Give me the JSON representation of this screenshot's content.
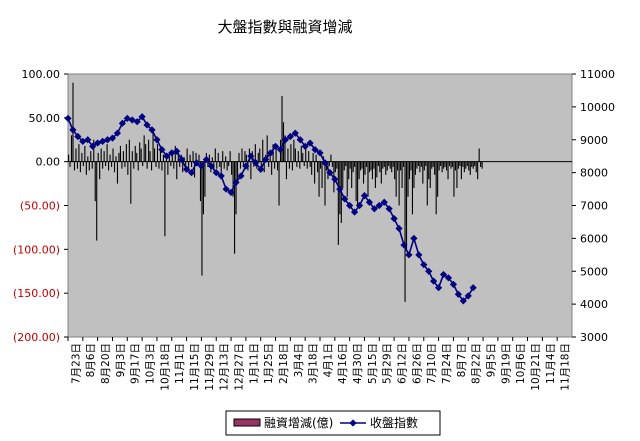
{
  "chart_data": {
    "type": "bar+line",
    "title": "大盤指數與融資增減",
    "xlabel": "",
    "ylabel_left": "",
    "ylabel_right": "",
    "left_axis": {
      "ylim": [
        -200,
        100
      ],
      "ticks": [
        100,
        50,
        0,
        -50,
        -100,
        -150,
        -200
      ],
      "tick_labels": [
        "100.00",
        "50.00",
        "0.00",
        "(50.00)",
        "(100.00)",
        "(150.00)",
        "(200.00)"
      ]
    },
    "right_axis": {
      "ylim": [
        3000,
        11000
      ],
      "ticks": [
        11000,
        10000,
        9000,
        8000,
        7000,
        6000,
        5000,
        4000,
        3000
      ],
      "tick_labels": [
        "11000",
        "10000",
        "9000",
        "8000",
        "7000",
        "6000",
        "5000",
        "4000",
        "3000"
      ]
    },
    "x_tick_labels": [
      "7月23日",
      "8月6日",
      "8月20日",
      "9月3日",
      "9月17日",
      "10月3日",
      "10月18日",
      "11月1日",
      "11月15日",
      "11月29日",
      "12月13日",
      "12月27日",
      "1月11日",
      "1月25日",
      "2月18日",
      "3月4日",
      "3月18日",
      "4月1日",
      "4月16日",
      "4月30日",
      "5月15日",
      "5月29日",
      "6月12日",
      "6月26日",
      "7月10日",
      "7月24日",
      "8月7日",
      "8月22日",
      "9月5日",
      "9月19日",
      "10月6日",
      "10月21日",
      "11月4日",
      "11月18日"
    ],
    "gridlines": false,
    "legend_position": "bottom-center",
    "series": [
      {
        "name": "融資增減(億)",
        "type": "bar",
        "axis": "left",
        "color": "#000000",
        "legend_color": "#993366",
        "points_per_tick": 10,
        "values": [
          8,
          -6,
          30,
          90,
          -10,
          15,
          -8,
          20,
          -12,
          10,
          -5,
          18,
          -15,
          6,
          -10,
          12,
          -8,
          25,
          -45,
          -90,
          10,
          -20,
          15,
          -8,
          12,
          -5,
          20,
          -10,
          8,
          -6,
          15,
          -12,
          6,
          -25,
          10,
          18,
          -8,
          12,
          -6,
          20,
          -15,
          25,
          -48,
          12,
          -8,
          18,
          10,
          -10,
          22,
          15,
          -5,
          30,
          20,
          -8,
          25,
          12,
          -10,
          35,
          15,
          -6,
          20,
          -8,
          12,
          -10,
          8,
          -85,
          10,
          -15,
          6,
          -5,
          12,
          -8,
          18,
          -20,
          10,
          -6,
          8,
          -12,
          5,
          -8,
          15,
          -10,
          8,
          -6,
          12,
          -18,
          10,
          -5,
          8,
          -45,
          -130,
          -60,
          -40,
          10,
          -6,
          8,
          -12,
          5,
          -10,
          15,
          -8,
          10,
          -6,
          -20,
          12,
          -8,
          6,
          -10,
          -5,
          12,
          -15,
          -40,
          -105,
          -60,
          -25,
          10,
          -8,
          15,
          -6,
          12,
          8,
          -10,
          15,
          -20,
          12,
          -6,
          20,
          -8,
          10,
          15,
          -10,
          25,
          -12,
          8,
          30,
          -6,
          12,
          -15,
          20,
          -8,
          15,
          -10,
          -50,
          25,
          75,
          45,
          30,
          -20,
          15,
          -8,
          20,
          -10,
          25,
          15,
          -6,
          12,
          -8,
          18,
          10,
          -5,
          20,
          -8,
          12,
          -6,
          -15,
          10,
          -25,
          8,
          -12,
          -40,
          -8,
          -30,
          6,
          -50,
          -10,
          -20,
          -5,
          8,
          -6,
          -35,
          -12,
          -8,
          -95,
          -60,
          -70,
          -30,
          -10,
          -5,
          -40,
          -20,
          -8,
          -30,
          -12,
          -6,
          -45,
          -50,
          -20,
          -10,
          -8,
          -25,
          -15,
          -6,
          -40,
          -12,
          -10,
          -20,
          -8,
          -30,
          -18,
          -5,
          -12,
          -25,
          -8,
          -6,
          -15,
          -10,
          -5,
          -8,
          -12,
          -6,
          -20,
          -40,
          -10,
          -50,
          -10,
          -30,
          -6,
          -160,
          -100,
          -40,
          -20,
          -10,
          -60,
          -30,
          -15,
          -8,
          -5,
          -12,
          -6,
          -25,
          -10,
          -5,
          -50,
          -20,
          -30,
          -8,
          -6,
          -15,
          -60,
          -40,
          -10,
          -5,
          -12,
          -8,
          -6,
          -10,
          -20,
          -5,
          -8,
          -6,
          -40,
          -10,
          -30,
          -8,
          -5,
          -20,
          -6,
          -12,
          -8,
          -5,
          -10,
          -15,
          -6,
          -8,
          -5,
          -12,
          -20,
          15,
          -6,
          -8
        ]
      },
      {
        "name": "收盤指數",
        "type": "line",
        "axis": "right",
        "color": "#000080",
        "marker": "diamond",
        "points_per_tick": 3,
        "values": [
          9650,
          9300,
          9100,
          8950,
          9000,
          8800,
          8900,
          8950,
          9000,
          9050,
          9200,
          9500,
          9650,
          9600,
          9550,
          9700,
          9450,
          9300,
          9000,
          8700,
          8500,
          8600,
          8650,
          8400,
          8100,
          8000,
          8300,
          8200,
          8400,
          8200,
          8000,
          7900,
          7500,
          7400,
          7700,
          7900,
          8200,
          8500,
          8300,
          8100,
          8400,
          8600,
          8800,
          8700,
          9000,
          9100,
          9200,
          9000,
          8800,
          8900,
          8700,
          8600,
          8300,
          8000,
          7800,
          7500,
          7200,
          7000,
          6800,
          7000,
          7300,
          7100,
          6900,
          7000,
          7100,
          6900,
          6600,
          6300,
          5800,
          5500,
          6000,
          5500,
          5200,
          5000,
          4700,
          4500,
          4900,
          4800,
          4600,
          4300,
          4100,
          4250,
          4500
        ]
      }
    ]
  }
}
